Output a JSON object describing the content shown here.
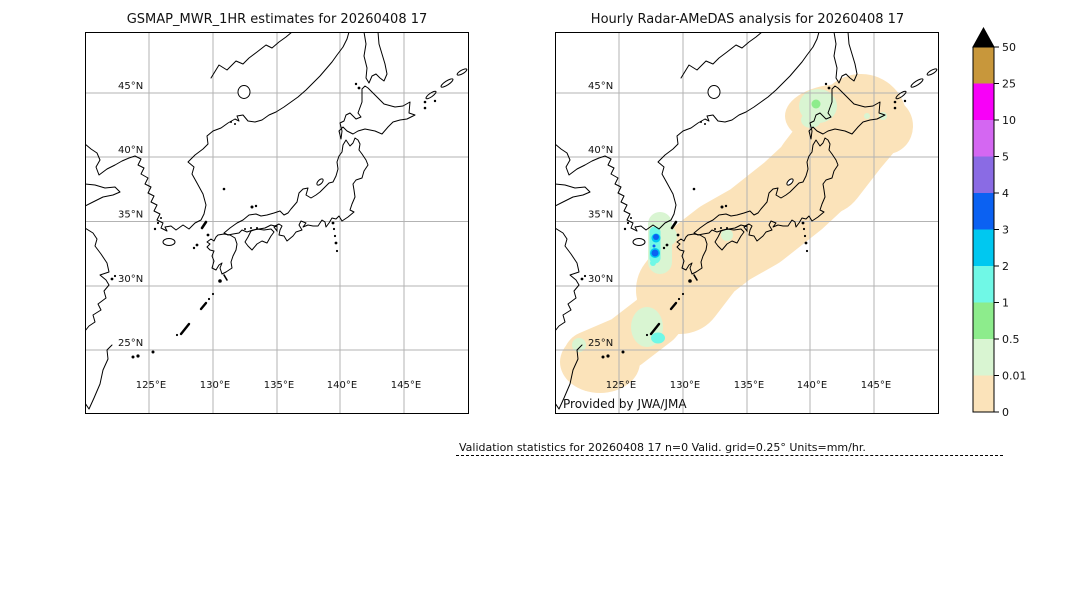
{
  "panels": [
    {
      "id": "gsmap",
      "title": "GSMAP_MWR_1HR estimates for 20260408 17"
    },
    {
      "id": "radar",
      "title": "Hourly Radar-AMeDAS analysis for 20260408 17",
      "credit": "Provided by JWA/JMA"
    }
  ],
  "axes": {
    "lat_labels": [
      "45°N",
      "40°N",
      "35°N",
      "30°N",
      "25°N"
    ],
    "lon_labels": [
      "125°E",
      "130°E",
      "135°E",
      "140°E",
      "145°E"
    ],
    "lat_deg_n": [
      45,
      40,
      35,
      30,
      25
    ],
    "lon_deg_e": [
      125,
      130,
      135,
      140,
      145
    ],
    "lon_range_deg_e": [
      120,
      150
    ],
    "lat_range_deg_n": [
      20,
      50
    ]
  },
  "colorbar": {
    "tick_labels": [
      "50",
      "25",
      "10",
      "5",
      "4",
      "3",
      "2",
      "1",
      "0.5",
      "0.01",
      "0"
    ],
    "colors_top_to_bottom": [
      "#c8973b",
      "#f800f8",
      "#d467f2",
      "#8a6be4",
      "#0b61f2",
      "#00c8f0",
      "#70f8e6",
      "#8dec8c",
      "#d9f5d2",
      "#fbe3ba"
    ],
    "overflow_color": "#000000",
    "units": "mm/hr"
  },
  "palette": {
    "c0_trace": "#fbe3ba",
    "c1_light_green": "#d9f5d2",
    "c2_green": "#8dec8c",
    "c3_aqua": "#70f8e6",
    "c4_sky": "#00c8f0",
    "c5_blue": "#0b61f2",
    "grid": "#b3b3b3",
    "coast": "#000000"
  },
  "footer": {
    "stats_line": "Validation statistics for 20260408 17  n=0 Valid. grid=0.25° Units=mm/hr."
  },
  "map_data": {
    "left_panel": "GSMaP MWR 1-hour estimates: no data / no rain shown (blank map)",
    "right_panel": "Radar-AMeDAS analysis: continuous trace-rain (0–0.01 mm/hr) band from east of Taiwan along the Ryukyu Islands, Kyushu, Honshu up to Hokkaido",
    "light_rain_patches_0_01_to_0_5": [
      "Tsushima Strait west of Kyushu",
      "central Hokkaido",
      "near Okinawa",
      "east of Taiwan",
      "west of Shikoku",
      "eastern Hokkaido specks"
    ],
    "heavier_cells_1_to_4": [
      "small cells in Tsushima Strait (up to 3–4 mm/hr)",
      "small cell near Okinawa (1–2 mm/hr)"
    ],
    "valid_points": "n=0",
    "grid_resolution_deg": "0.25"
  }
}
